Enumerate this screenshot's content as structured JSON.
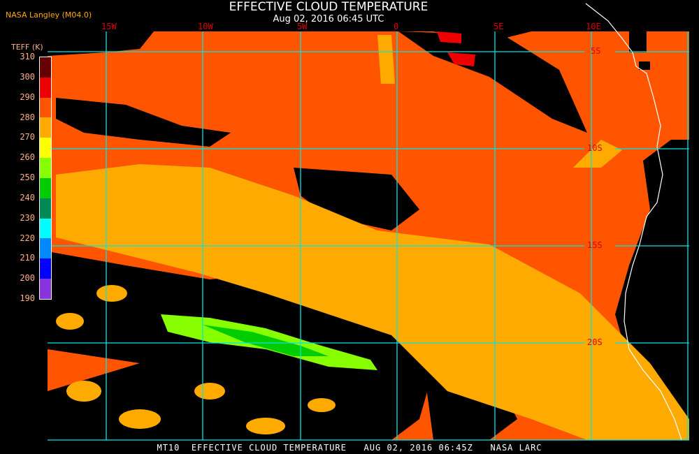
{
  "header": {
    "title": "EFFECTIVE CLOUD TEMPERATURE",
    "subtitle": "Aug 02, 2016 06:45 UTC",
    "credit": "NASA Langley (M04.0)"
  },
  "legend": {
    "title": "TEFF (K)",
    "ticks": [
      "310",
      "300",
      "290",
      "280",
      "270",
      "260",
      "250",
      "240",
      "230",
      "220",
      "210",
      "200",
      "190"
    ],
    "colors": [
      "#660000",
      "#EE0000",
      "#FF5500",
      "#FFAA00",
      "#FFFF00",
      "#88FF00",
      "#00CC00",
      "#008855",
      "#00FFFF",
      "#0088FF",
      "#0000FF",
      "#8833DD"
    ]
  },
  "map": {
    "longitude_labels": [
      "15W",
      "10W",
      "5W",
      "0",
      "5E",
      "10E"
    ],
    "latitude_labels": [
      "5S",
      "10S",
      "15S",
      "20S"
    ],
    "grid_color": "#00E5E5",
    "label_color": "#E00000",
    "coastline_color": "#FFFFFF",
    "no_cloud_color": "#000000"
  },
  "footer": {
    "text": "MT10  EFFECTIVE CLOUD TEMPERATURE   AUG 02, 2016 06:45Z   NASA LARC"
  }
}
